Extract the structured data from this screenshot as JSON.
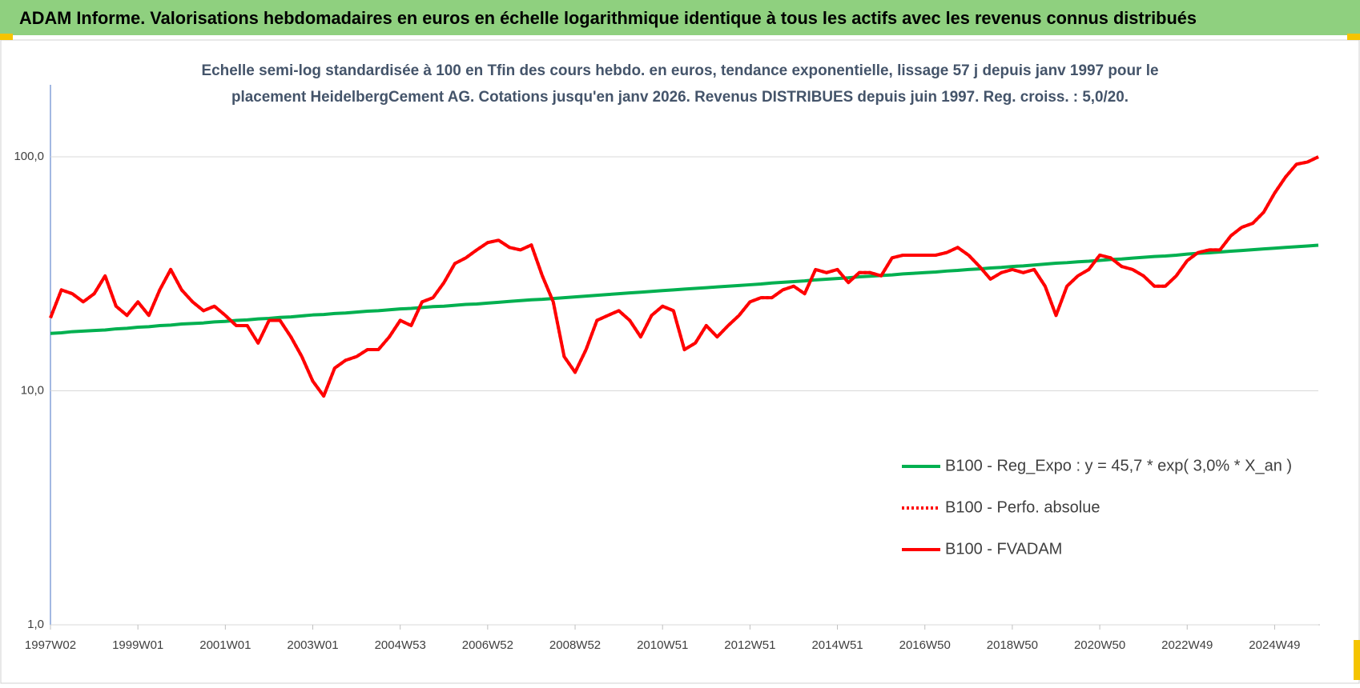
{
  "chart_data": {
    "type": "line",
    "title": "ADAM Informe. Valorisations hebdomadaires en euros en échelle logarithmique identique à tous les actifs avec les revenus connus distribués",
    "subtitle": [
      "Echelle semi-log standardisée à 100 en Tfin des cours hebdo. en euros, tendance exponentielle, lissage 57 j depuis janv 1997 pour le",
      "placement HeidelbergCement AG. Cotations jusqu'en janv 2026. Revenus DISTRIBUES depuis juin 1997. Reg. croiss. : 5,0/20."
    ],
    "log_scale": true,
    "grid": true,
    "legend": "right",
    "ylim": [
      1,
      200
    ],
    "yticks": [
      {
        "value": 1,
        "label": "1,0"
      },
      {
        "value": 10,
        "label": "10,0"
      },
      {
        "value": 100,
        "label": "100,0"
      }
    ],
    "categories": [
      "1997W02",
      null,
      null,
      null,
      null,
      null,
      null,
      null,
      "1999W01",
      null,
      null,
      null,
      null,
      null,
      null,
      null,
      "2001W01",
      null,
      null,
      null,
      null,
      null,
      null,
      null,
      "2003W01",
      null,
      null,
      null,
      null,
      null,
      null,
      null,
      "2004W53",
      null,
      null,
      null,
      null,
      null,
      null,
      null,
      "2006W52",
      null,
      null,
      null,
      null,
      null,
      null,
      null,
      "2008W52",
      null,
      null,
      null,
      null,
      null,
      null,
      null,
      "2010W51",
      null,
      null,
      null,
      null,
      null,
      null,
      null,
      "2012W51",
      null,
      null,
      null,
      null,
      null,
      null,
      null,
      "2014W51",
      null,
      null,
      null,
      null,
      null,
      null,
      null,
      "2016W50",
      null,
      null,
      null,
      null,
      null,
      null,
      null,
      "2018W50",
      null,
      null,
      null,
      null,
      null,
      null,
      null,
      "2020W50",
      null,
      null,
      null,
      null,
      null,
      null,
      null,
      "2022W49",
      null,
      null,
      null,
      null,
      null,
      null,
      null,
      "2024W49",
      null,
      null,
      null,
      null
    ],
    "series": [
      {
        "name": "B100 - Reg_Expo : y = 45,7 * exp( 3,0% *  X_an )",
        "color": "#00b050",
        "style": "solid",
        "values": [
          17.6,
          17.7,
          17.9,
          18.0,
          18.1,
          18.2,
          18.4,
          18.5,
          18.7,
          18.8,
          19.0,
          19.1,
          19.3,
          19.4,
          19.5,
          19.7,
          19.8,
          20.0,
          20.1,
          20.3,
          20.4,
          20.6,
          20.7,
          20.9,
          21.1,
          21.2,
          21.4,
          21.5,
          21.7,
          21.9,
          22.0,
          22.2,
          22.4,
          22.5,
          22.7,
          22.9,
          23.0,
          23.2,
          23.4,
          23.5,
          23.7,
          23.9,
          24.1,
          24.3,
          24.5,
          24.6,
          24.8,
          25.0,
          25.2,
          25.4,
          25.6,
          25.8,
          26.0,
          26.2,
          26.4,
          26.6,
          26.8,
          27.0,
          27.2,
          27.4,
          27.6,
          27.8,
          28.0,
          28.2,
          28.4,
          28.6,
          28.9,
          29.1,
          29.3,
          29.5,
          29.8,
          30.0,
          30.2,
          30.4,
          30.7,
          30.9,
          31.1,
          31.3,
          31.6,
          31.8,
          32.0,
          32.2,
          32.5,
          32.7,
          33.0,
          33.2,
          33.5,
          33.7,
          34.0,
          34.2,
          34.5,
          34.8,
          35.1,
          35.3,
          35.6,
          35.8,
          36.1,
          36.4,
          36.6,
          36.9,
          37.2,
          37.5,
          37.7,
          38.0,
          38.4,
          38.7,
          38.9,
          39.2,
          39.5,
          39.8,
          40.1,
          40.4,
          40.7,
          41.0,
          41.3,
          41.6,
          41.9
        ]
      },
      {
        "name": "B100 - Perfo. absolue",
        "color": "#ff0000",
        "style": "dotted",
        "values": [
          20.5,
          27,
          26,
          24,
          26,
          31,
          23,
          21,
          24,
          21,
          27,
          33,
          27,
          24,
          22,
          23,
          21,
          19,
          19,
          16,
          20,
          20,
          17,
          14,
          11,
          9.5,
          12.5,
          13.5,
          14,
          15,
          15,
          17,
          20,
          19,
          24,
          25,
          29,
          35,
          37,
          40,
          43,
          44,
          41,
          40,
          42,
          31,
          24,
          14,
          12,
          15,
          20,
          21,
          22,
          20,
          17,
          21,
          23,
          22,
          15,
          16,
          19,
          17,
          19,
          21,
          24,
          25,
          25,
          27,
          28,
          26,
          33,
          32,
          33,
          29,
          32,
          32,
          31,
          37,
          38,
          38,
          38,
          38,
          39,
          41,
          38,
          34,
          30,
          32,
          33,
          32,
          33,
          28,
          21,
          28,
          31,
          33,
          38,
          37,
          34,
          33,
          31,
          28,
          28,
          31,
          36,
          39,
          40,
          40,
          46,
          50,
          52,
          58,
          70,
          82,
          93,
          95,
          100
        ]
      },
      {
        "name": "B100 - FVADAM",
        "color": "#ff0000",
        "style": "solid",
        "values": [
          20.5,
          27,
          26,
          24,
          26,
          31,
          23,
          21,
          24,
          21,
          27,
          33,
          27,
          24,
          22,
          23,
          21,
          19,
          19,
          16,
          20,
          20,
          17,
          14,
          11,
          9.5,
          12.5,
          13.5,
          14,
          15,
          15,
          17,
          20,
          19,
          24,
          25,
          29,
          35,
          37,
          40,
          43,
          44,
          41,
          40,
          42,
          31,
          24,
          14,
          12,
          15,
          20,
          21,
          22,
          20,
          17,
          21,
          23,
          22,
          15,
          16,
          19,
          17,
          19,
          21,
          24,
          25,
          25,
          27,
          28,
          26,
          33,
          32,
          33,
          29,
          32,
          32,
          31,
          37,
          38,
          38,
          38,
          38,
          39,
          41,
          38,
          34,
          30,
          32,
          33,
          32,
          33,
          28,
          21,
          28,
          31,
          33,
          38,
          37,
          34,
          33,
          31,
          28,
          28,
          31,
          36,
          39,
          40,
          40,
          46,
          50,
          52,
          58,
          70,
          82,
          93,
          95,
          100
        ]
      }
    ]
  }
}
